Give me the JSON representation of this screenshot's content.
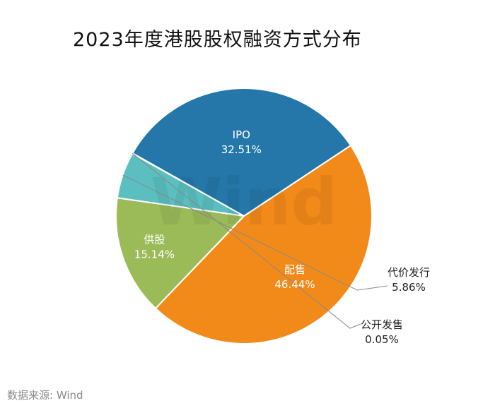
{
  "chart_data": {
    "type": "pie",
    "title": "2023年度港股股权融资方式分布",
    "slices": [
      {
        "label": "配售",
        "value": 46.44,
        "value_label": "46.44%",
        "color": "#f28a1a"
      },
      {
        "label": "供股",
        "value": 15.14,
        "value_label": "15.14%",
        "color": "#9bbb59"
      },
      {
        "label": "代价发行",
        "value": 5.86,
        "value_label": "5.86%",
        "color": "#5bbfc0"
      },
      {
        "label": "公开发售",
        "value": 0.05,
        "value_label": "0.05%",
        "color": "#2e5f8a"
      },
      {
        "label": "IPO",
        "value": 32.51,
        "value_label": "32.51%",
        "color": "#2477a8"
      }
    ],
    "legend": "none"
  },
  "watermark": "Wind",
  "source": "数据来源: Wind"
}
